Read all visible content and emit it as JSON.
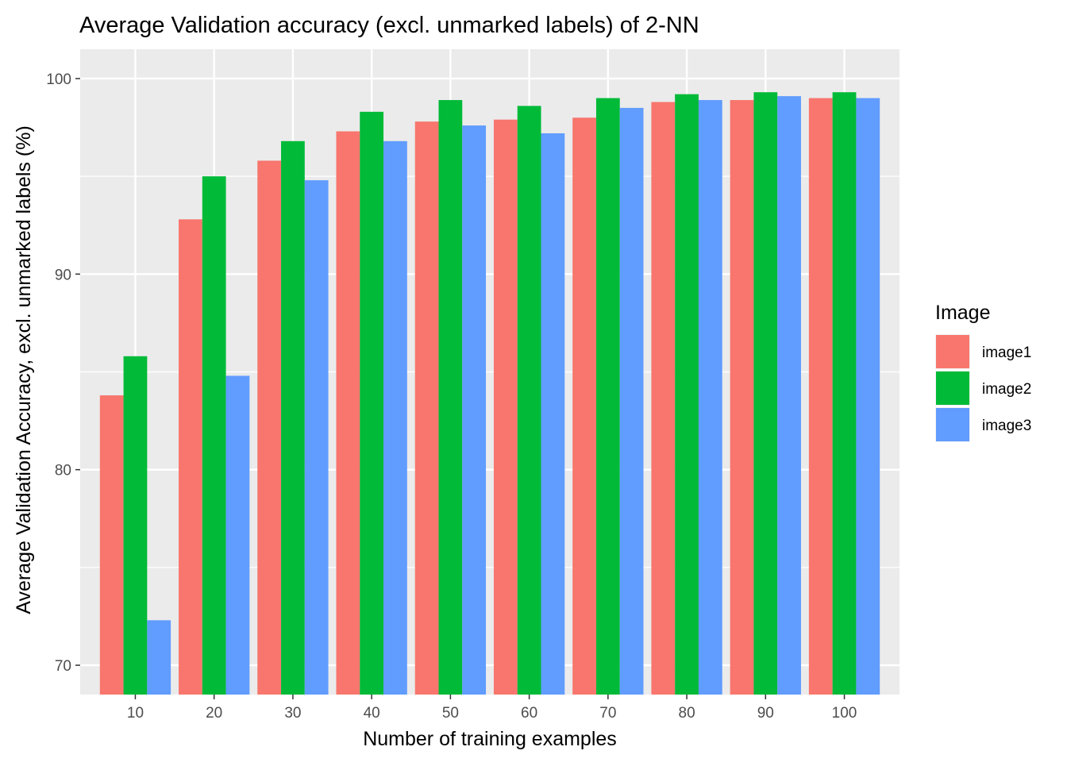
{
  "chart_data": {
    "type": "bar",
    "title": "Average Validation accuracy (excl. unmarked labels) of 2-NN",
    "xlabel": "Number of training examples",
    "ylabel": "Average Validation Accuracy, excl. unmarked labels (%)",
    "categories": [
      "10",
      "20",
      "30",
      "40",
      "50",
      "60",
      "70",
      "80",
      "90",
      "100"
    ],
    "series": [
      {
        "name": "image1",
        "color": "#F8766D",
        "values": [
          83.8,
          92.8,
          95.8,
          97.3,
          97.8,
          97.9,
          98.0,
          98.8,
          98.9,
          99.0
        ]
      },
      {
        "name": "image2",
        "color": "#00BA38",
        "values": [
          85.8,
          95.0,
          96.8,
          98.3,
          98.9,
          98.6,
          99.0,
          99.2,
          99.3,
          99.3
        ]
      },
      {
        "name": "image3",
        "color": "#619CFF",
        "values": [
          72.3,
          84.8,
          94.8,
          96.8,
          97.6,
          97.2,
          98.5,
          98.9,
          99.1,
          99.0
        ]
      }
    ],
    "yticks": [
      "70",
      "80",
      "90",
      "100"
    ],
    "ylim": [
      68.5,
      101.5
    ],
    "grid": true,
    "legend": {
      "title": "Image",
      "position": "right"
    }
  }
}
